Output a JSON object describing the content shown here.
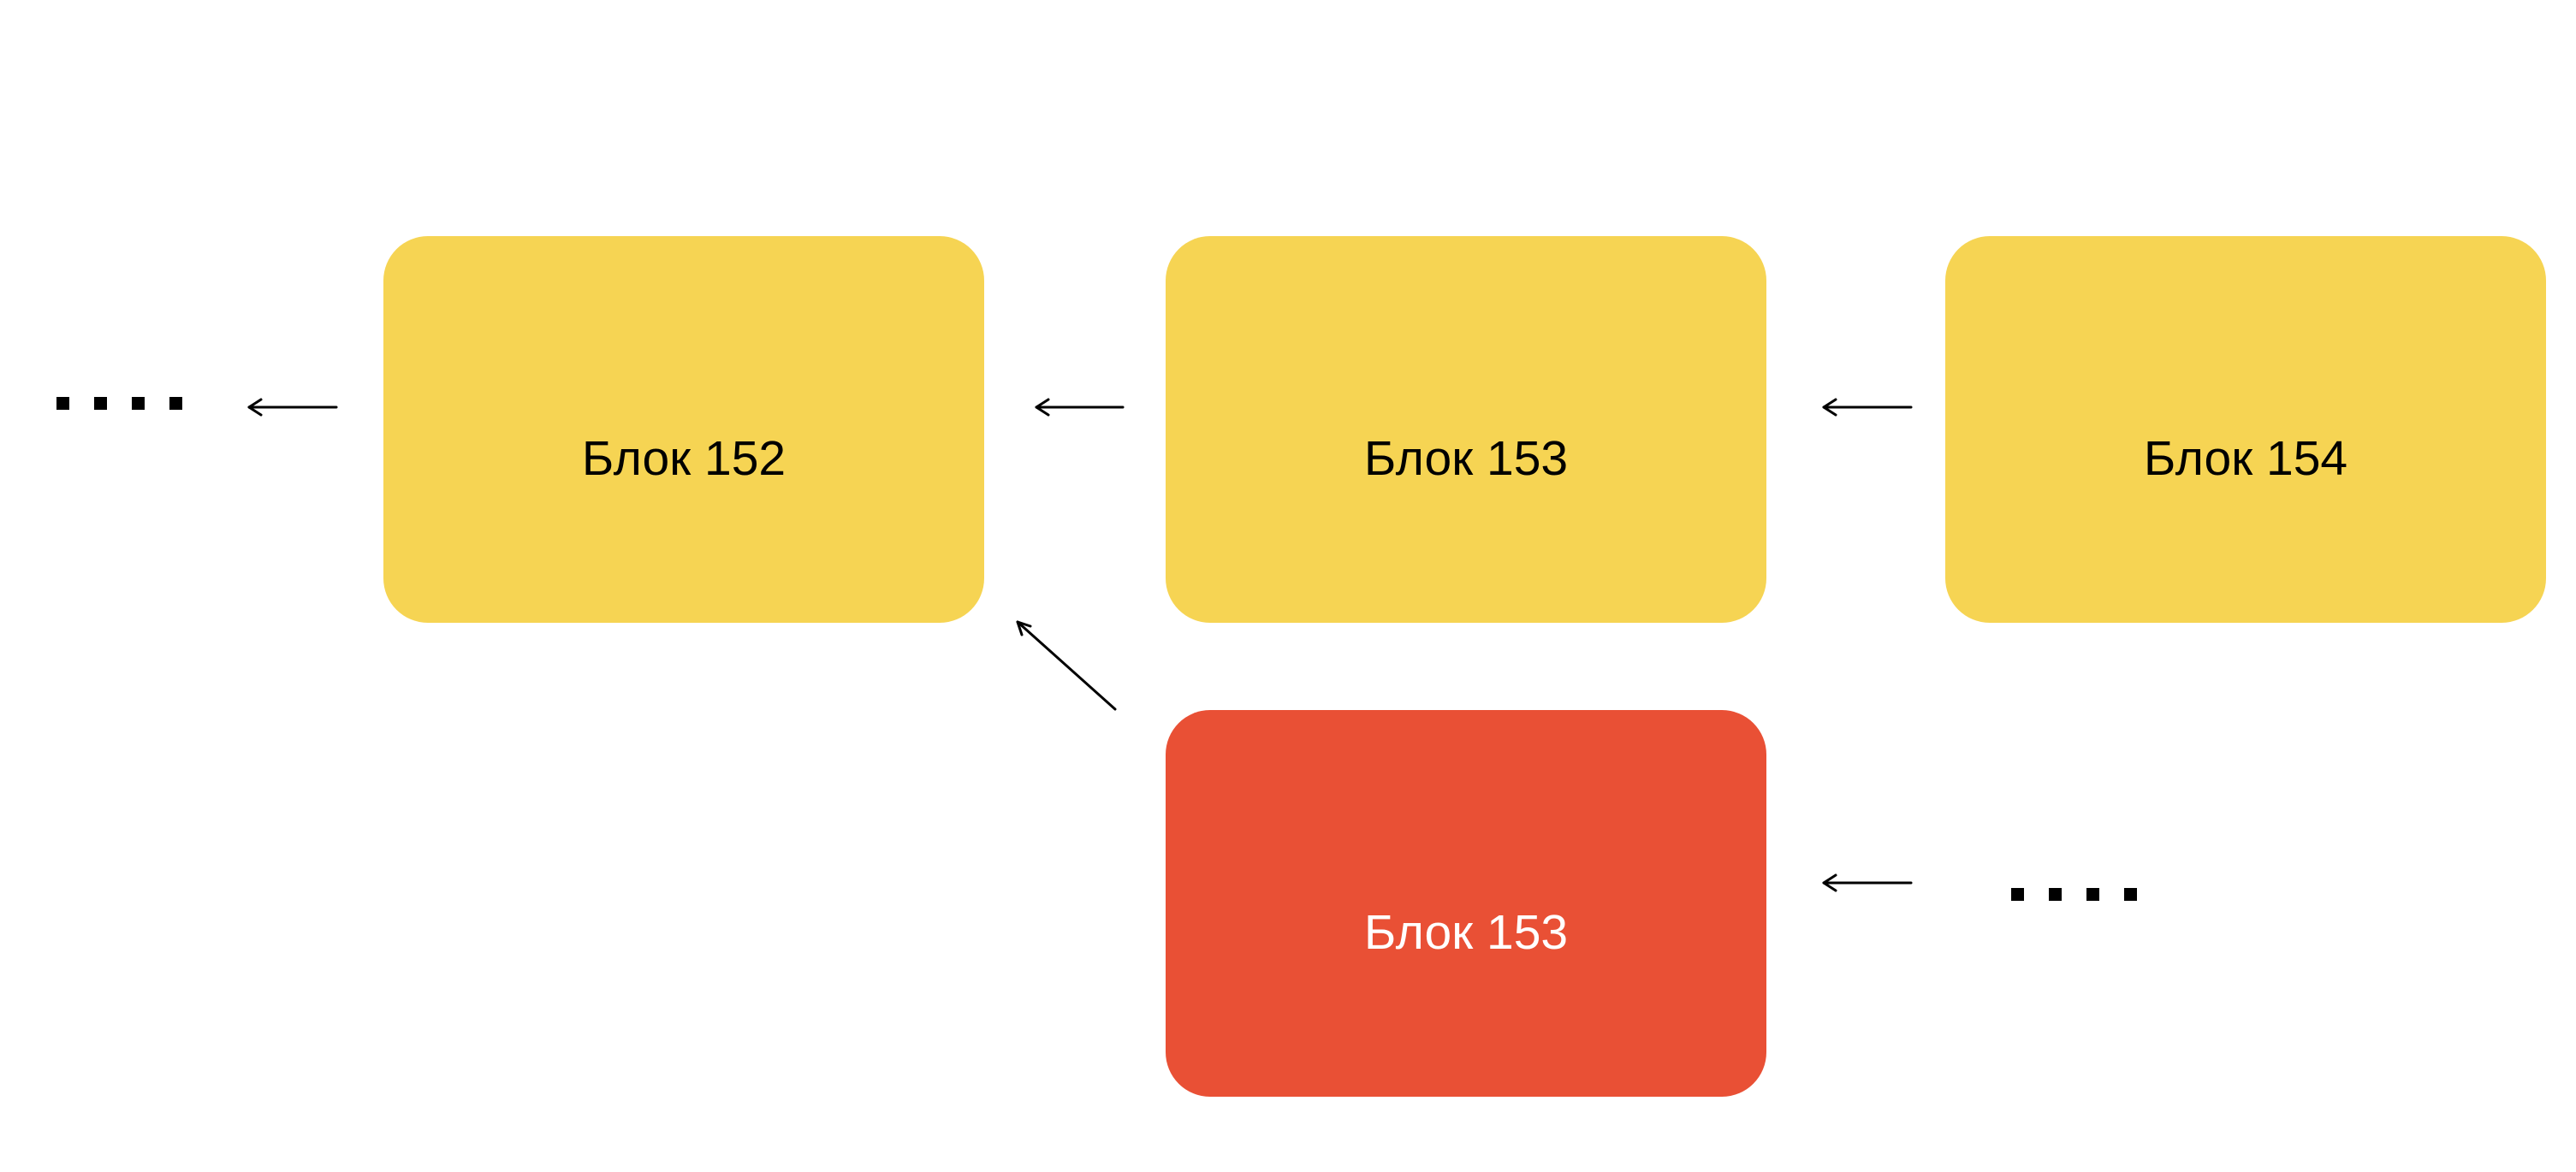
{
  "diagram": {
    "blocks": [
      {
        "id": "b152",
        "label": "Блок 152",
        "color": "#f6d453",
        "text_color": "#000000"
      },
      {
        "id": "b153",
        "label": "Блок 153",
        "color": "#f6d453",
        "text_color": "#000000"
      },
      {
        "id": "b154",
        "label": "Блок 154",
        "color": "#f6d453",
        "text_color": "#000000"
      },
      {
        "id": "b153f",
        "label": "Блок 153",
        "color": "#e95035",
        "text_color": "#ffffff"
      }
    ],
    "ellipsis_left": "....",
    "ellipsis_right": "....",
    "edges": [
      {
        "from": "b152",
        "to": "ellipsis_left"
      },
      {
        "from": "b153",
        "to": "b152"
      },
      {
        "from": "b154",
        "to": "b153"
      },
      {
        "from": "b153f",
        "to": "b152"
      },
      {
        "from": "ellipsis_right",
        "to": "b153f"
      }
    ]
  }
}
